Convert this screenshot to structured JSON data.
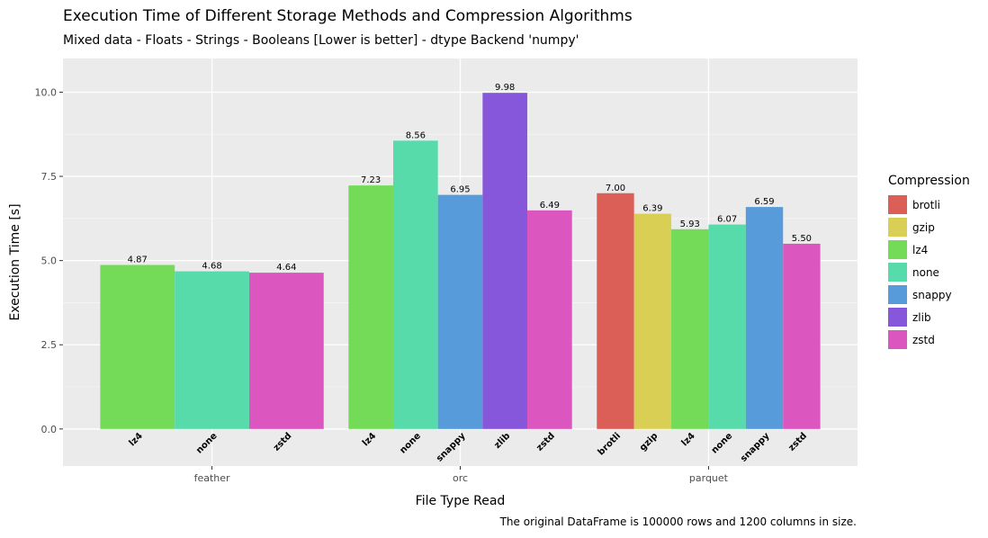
{
  "title": "Execution Time of Different Storage Methods and Compression Algorithms",
  "subtitle": "Mixed data - Floats - Strings - Booleans [Lower is better] - dtype Backend 'numpy'",
  "caption": "The original DataFrame is 100000 rows and 1200 columns in size.",
  "legend": {
    "title": "Compression",
    "items": [
      {
        "label": "brotli",
        "color": "#db5f57"
      },
      {
        "label": "gzip",
        "color": "#d9cf54"
      },
      {
        "label": "lz4",
        "color": "#73db57"
      },
      {
        "label": "none",
        "color": "#57dbab"
      },
      {
        "label": "snappy",
        "color": "#579bdb"
      },
      {
        "label": "zlib",
        "color": "#8757db"
      },
      {
        "label": "zstd",
        "color": "#db57bf"
      }
    ]
  },
  "chart_data": {
    "type": "bar",
    "xlabel": "File Type Read",
    "ylabel": "Execution Time [s]",
    "ylim": [
      -1.1,
      11.0
    ],
    "yticks": [
      "0.0",
      "2.5",
      "5.0",
      "7.5",
      "10.0"
    ],
    "grid": true,
    "legend_position": "right",
    "groups": [
      {
        "name": "feather",
        "bars": [
          {
            "compression": "lz4",
            "value": 4.87,
            "label": "4.87"
          },
          {
            "compression": "none",
            "value": 4.68,
            "label": "4.68"
          },
          {
            "compression": "zstd",
            "value": 4.64,
            "label": "4.64"
          }
        ]
      },
      {
        "name": "orc",
        "bars": [
          {
            "compression": "lz4",
            "value": 7.23,
            "label": "7.23"
          },
          {
            "compression": "none",
            "value": 8.56,
            "label": "8.56"
          },
          {
            "compression": "snappy",
            "value": 6.95,
            "label": "6.95"
          },
          {
            "compression": "zlib",
            "value": 9.98,
            "label": "9.98"
          },
          {
            "compression": "zstd",
            "value": 6.49,
            "label": "6.49"
          }
        ]
      },
      {
        "name": "parquet",
        "bars": [
          {
            "compression": "brotli",
            "value": 7.0,
            "label": "7.00"
          },
          {
            "compression": "gzip",
            "value": 6.39,
            "label": "6.39"
          },
          {
            "compression": "lz4",
            "value": 5.93,
            "label": "5.93"
          },
          {
            "compression": "none",
            "value": 6.07,
            "label": "6.07"
          },
          {
            "compression": "snappy",
            "value": 6.59,
            "label": "6.59"
          },
          {
            "compression": "zstd",
            "value": 5.5,
            "label": "5.50"
          }
        ]
      }
    ]
  }
}
